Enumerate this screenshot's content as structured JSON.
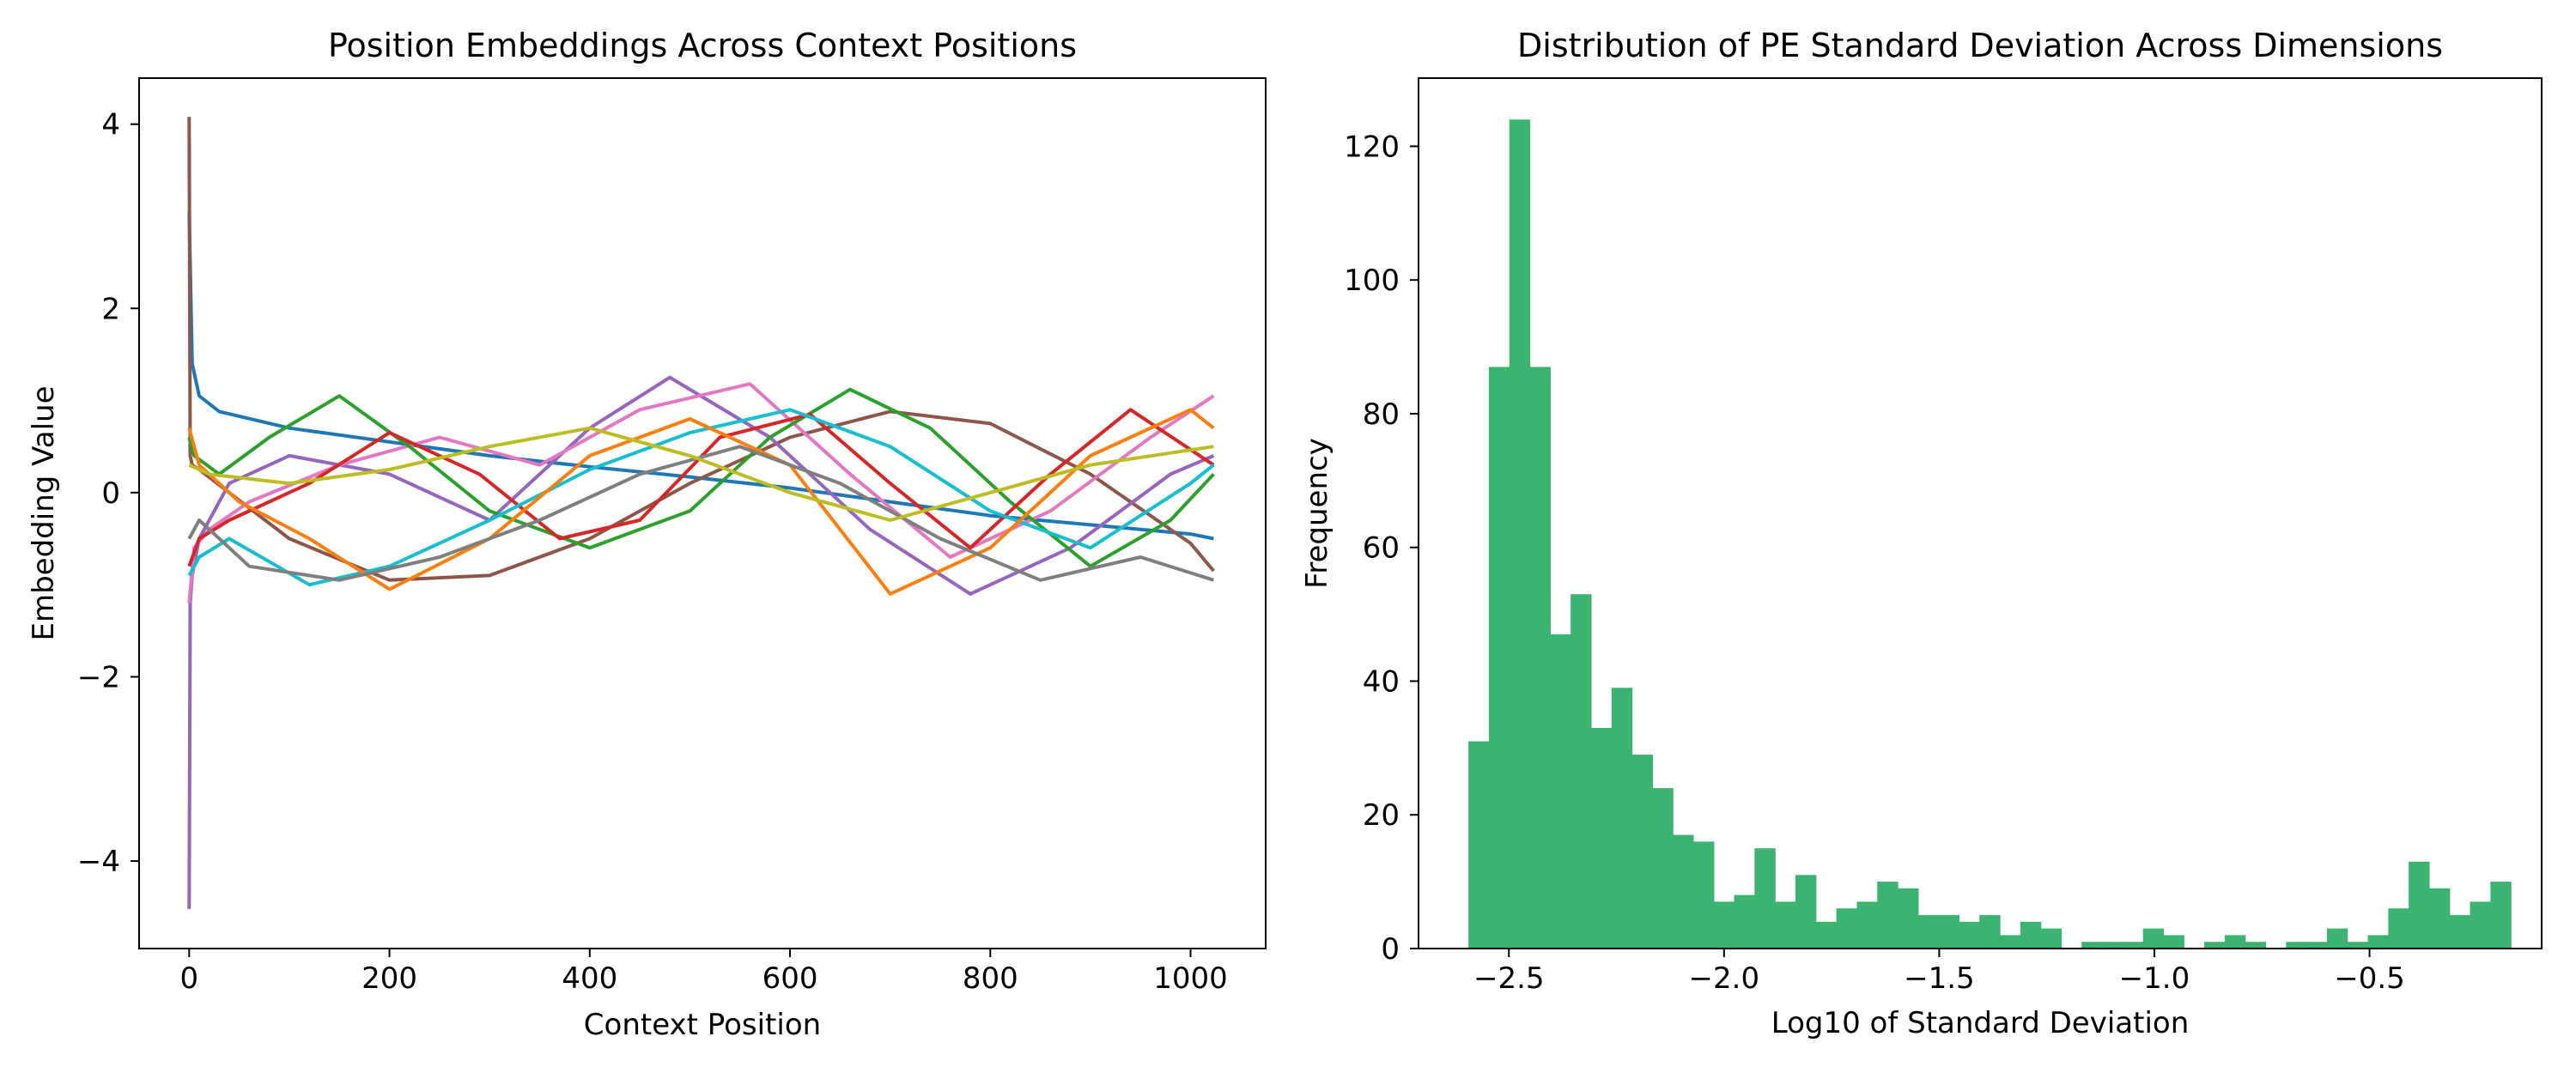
{
  "chart_data": [
    {
      "type": "line",
      "title": "Position Embeddings Across Context Positions",
      "xlabel": "Context Position",
      "ylabel": "Embedding Value",
      "xlim": [
        -50,
        1075
      ],
      "ylim": [
        -4.95,
        4.5
      ],
      "xticks": [
        0,
        200,
        400,
        600,
        800,
        1000
      ],
      "yticks": [
        -4,
        -2,
        0,
        2,
        4
      ],
      "xtick_labels": [
        "0",
        "200",
        "400",
        "600",
        "800",
        "1000"
      ],
      "ytick_labels": [
        "−4",
        "−2",
        "0",
        "2",
        "4"
      ],
      "legend": "none",
      "grid": false,
      "colors": [
        "#1f77b4",
        "#ff7f0e",
        "#2ca02c",
        "#d62728",
        "#9467bd",
        "#8c564b",
        "#e377c2",
        "#7f7f7f",
        "#bcbd22",
        "#17becf"
      ],
      "series": [
        {
          "color": "#1f77b4",
          "x": [
            0,
            3,
            10,
            30,
            100,
            200,
            300,
            400,
            500,
            600,
            700,
            800,
            900,
            1000,
            1023
          ],
          "y": [
            3.05,
            1.4,
            1.05,
            0.88,
            0.7,
            0.55,
            0.4,
            0.28,
            0.17,
            0.05,
            -0.1,
            -0.25,
            -0.35,
            -0.45,
            -0.5
          ]
        },
        {
          "color": "#8c564b",
          "x": [
            0,
            1,
            3,
            10,
            40,
            100,
            200,
            300,
            400,
            500,
            600,
            700,
            800,
            900,
            1000,
            1023
          ],
          "y": [
            4.08,
            0.4,
            0.3,
            0.25,
            0.0,
            -0.5,
            -0.95,
            -0.9,
            -0.5,
            0.1,
            0.6,
            0.88,
            0.75,
            0.2,
            -0.55,
            -0.85
          ]
        },
        {
          "color": "#9467bd",
          "x": [
            0,
            1,
            3,
            10,
            40,
            100,
            200,
            300,
            400,
            480,
            580,
            680,
            780,
            880,
            980,
            1023
          ],
          "y": [
            -4.52,
            -1.2,
            -0.9,
            -0.5,
            0.1,
            0.4,
            0.2,
            -0.3,
            0.7,
            1.25,
            0.6,
            -0.4,
            -1.1,
            -0.6,
            0.2,
            0.4
          ]
        },
        {
          "color": "#e377c2",
          "x": [
            0,
            5,
            20,
            60,
            150,
            250,
            350,
            450,
            560,
            660,
            760,
            860,
            960,
            1023
          ],
          "y": [
            -1.2,
            -0.6,
            -0.4,
            -0.1,
            0.3,
            0.6,
            0.3,
            0.9,
            1.18,
            0.2,
            -0.7,
            -0.2,
            0.6,
            1.05
          ]
        },
        {
          "color": "#2ca02c",
          "x": [
            0,
            5,
            30,
            80,
            150,
            220,
            300,
            400,
            500,
            580,
            660,
            740,
            820,
            900,
            980,
            1023
          ],
          "y": [
            0.6,
            0.4,
            0.2,
            0.6,
            1.05,
            0.5,
            -0.2,
            -0.6,
            -0.2,
            0.6,
            1.12,
            0.7,
            -0.1,
            -0.8,
            -0.3,
            0.2
          ]
        },
        {
          "color": "#d62728",
          "x": [
            0,
            10,
            40,
            120,
            200,
            290,
            370,
            450,
            530,
            620,
            700,
            780,
            860,
            940,
            1023
          ],
          "y": [
            -0.8,
            -0.5,
            -0.3,
            0.1,
            0.65,
            0.2,
            -0.5,
            -0.3,
            0.6,
            0.85,
            0.1,
            -0.6,
            0.2,
            0.9,
            0.3
          ]
        },
        {
          "color": "#17becf",
          "x": [
            0,
            10,
            40,
            120,
            200,
            300,
            400,
            500,
            600,
            700,
            800,
            900,
            1000,
            1023
          ],
          "y": [
            -0.9,
            -0.7,
            -0.5,
            -1.0,
            -0.8,
            -0.3,
            0.25,
            0.65,
            0.9,
            0.5,
            -0.2,
            -0.6,
            0.1,
            0.3
          ]
        },
        {
          "color": "#ff7f0e",
          "x": [
            0,
            10,
            50,
            120,
            200,
            300,
            400,
            500,
            600,
            700,
            800,
            900,
            1000,
            1023
          ],
          "y": [
            0.7,
            0.3,
            -0.1,
            -0.5,
            -1.05,
            -0.5,
            0.4,
            0.8,
            0.3,
            -1.1,
            -0.6,
            0.4,
            0.9,
            0.7
          ]
        },
        {
          "color": "#7f7f7f",
          "x": [
            0,
            10,
            60,
            150,
            250,
            350,
            450,
            550,
            650,
            750,
            850,
            950,
            1023
          ],
          "y": [
            -0.5,
            -0.3,
            -0.8,
            -0.95,
            -0.7,
            -0.3,
            0.2,
            0.5,
            0.1,
            -0.5,
            -0.95,
            -0.7,
            -0.95
          ]
        },
        {
          "color": "#bcbd22",
          "x": [
            0,
            20,
            100,
            200,
            300,
            400,
            500,
            600,
            700,
            800,
            900,
            1023
          ],
          "y": [
            0.3,
            0.2,
            0.1,
            0.25,
            0.5,
            0.7,
            0.4,
            0.0,
            -0.3,
            0.0,
            0.3,
            0.5
          ]
        }
      ]
    },
    {
      "type": "bar",
      "subtype": "histogram",
      "title": "Distribution of PE Standard Deviation Across Dimensions",
      "xlabel": "Log10 of Standard Deviation",
      "ylabel": "Frequency",
      "xlim": [
        -2.71,
        -0.1
      ],
      "ylim": [
        0,
        130.2
      ],
      "xticks": [
        -2.5,
        -2.0,
        -1.5,
        -1.0,
        -0.5
      ],
      "yticks": [
        0,
        20,
        40,
        60,
        80,
        100,
        120
      ],
      "xtick_labels": [
        "−2.5",
        "−2.0",
        "−1.5",
        "−1.0",
        "−0.5"
      ],
      "ytick_labels": [
        "0",
        "20",
        "40",
        "60",
        "80",
        "100",
        "120"
      ],
      "color": "#3cb371",
      "legend": "none",
      "grid": false,
      "bin_start": -2.594,
      "bin_width": 0.0475,
      "values": [
        31,
        87,
        124,
        87,
        47,
        53,
        33,
        39,
        29,
        24,
        17,
        16,
        7,
        8,
        15,
        7,
        11,
        4,
        6,
        7,
        10,
        9,
        5,
        5,
        4,
        5,
        2,
        4,
        3,
        0,
        1,
        1,
        1,
        3,
        2,
        0,
        1,
        2,
        1,
        0,
        1,
        1,
        3,
        1,
        2,
        6,
        13,
        9,
        5,
        7,
        10
      ]
    }
  ]
}
